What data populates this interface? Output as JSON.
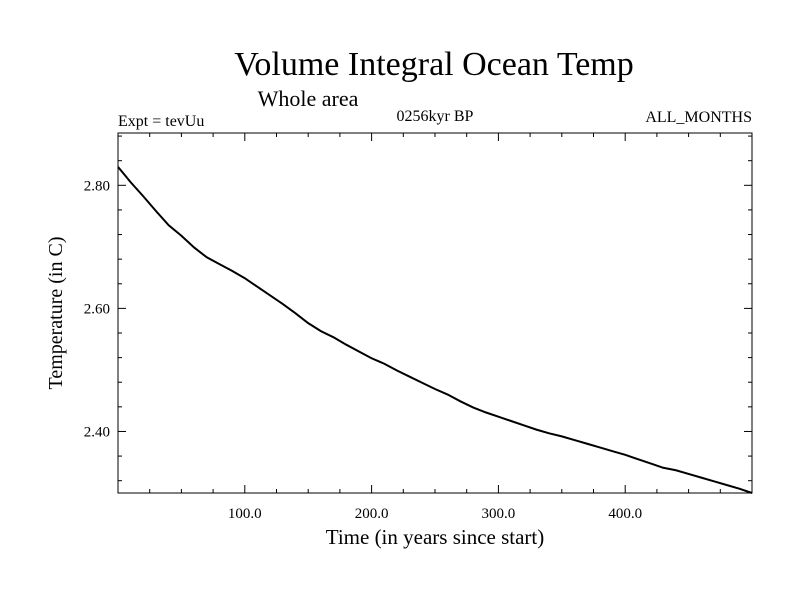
{
  "header": {
    "title": "Volume Integral Ocean Temp",
    "subtitle": "Whole area",
    "experiment": "Expt = tevUu",
    "period": "0256kyr BP",
    "months": "ALL_MONTHS"
  },
  "chart_data": {
    "type": "line",
    "title": "Volume Integral Ocean Temp",
    "subtitle": "Whole area",
    "xlabel": "Time (in years since start)",
    "ylabel": "Temperature (in C)",
    "xlim": [
      0,
      500
    ],
    "ylim": [
      2.3,
      2.885
    ],
    "x_ticks": [
      100,
      200,
      300,
      400
    ],
    "x_tick_labels": [
      "100.0",
      "200.0",
      "300.0",
      "400.0"
    ],
    "y_ticks": [
      2.4,
      2.6,
      2.8
    ],
    "y_tick_labels": [
      "2.40",
      "2.60",
      "2.80"
    ],
    "grid": false,
    "colors": {
      "line": "#000000",
      "axes": "#000000",
      "background": "#ffffff"
    },
    "series": [
      {
        "x": [
          0,
          10,
          20,
          30,
          40,
          50,
          60,
          70,
          80,
          90,
          100,
          110,
          120,
          130,
          140,
          150,
          160,
          170,
          180,
          190,
          200,
          210,
          220,
          230,
          240,
          250,
          260,
          270,
          280,
          290,
          300,
          310,
          320,
          330,
          340,
          350,
          360,
          370,
          380,
          390,
          400,
          410,
          420,
          430,
          440,
          450,
          460,
          470,
          480,
          490,
          500
        ],
        "values": [
          2.83,
          2.805,
          2.782,
          2.758,
          2.735,
          2.718,
          2.699,
          2.683,
          2.672,
          2.661,
          2.649,
          2.635,
          2.621,
          2.607,
          2.592,
          2.576,
          2.563,
          2.553,
          2.541,
          2.53,
          2.519,
          2.51,
          2.499,
          2.489,
          2.479,
          2.469,
          2.46,
          2.449,
          2.439,
          2.431,
          2.424,
          2.417,
          2.41,
          2.403,
          2.397,
          2.392,
          2.386,
          2.38,
          2.374,
          2.368,
          2.362,
          2.355,
          2.348,
          2.341,
          2.337,
          2.331,
          2.325,
          2.319,
          2.313,
          2.307,
          2.3
        ]
      }
    ]
  }
}
